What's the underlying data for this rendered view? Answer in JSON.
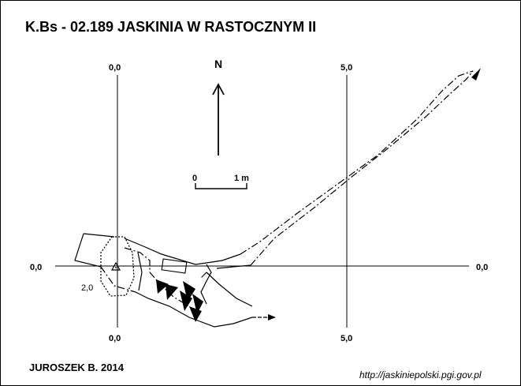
{
  "title": "K.Bs - 02.189  JASKINIA W RASTOCZNYM II",
  "author": "JUROSZEK B. 2014",
  "source_url": "http://jaskiniepolski.pgi.gov.pl",
  "north_label": "N",
  "scale_bar": {
    "start_label": "0",
    "end_label": "1 m"
  },
  "grid_labels": {
    "x0_top": "0,0",
    "x0_bottom": "0,0",
    "x5_top": "5,0",
    "x5_bottom": "5,0",
    "y0_left": "0,0",
    "y0_right": "0,0"
  },
  "depth_label": "2,0",
  "colors": {
    "ink": "#000000",
    "background": "#ffffff"
  }
}
